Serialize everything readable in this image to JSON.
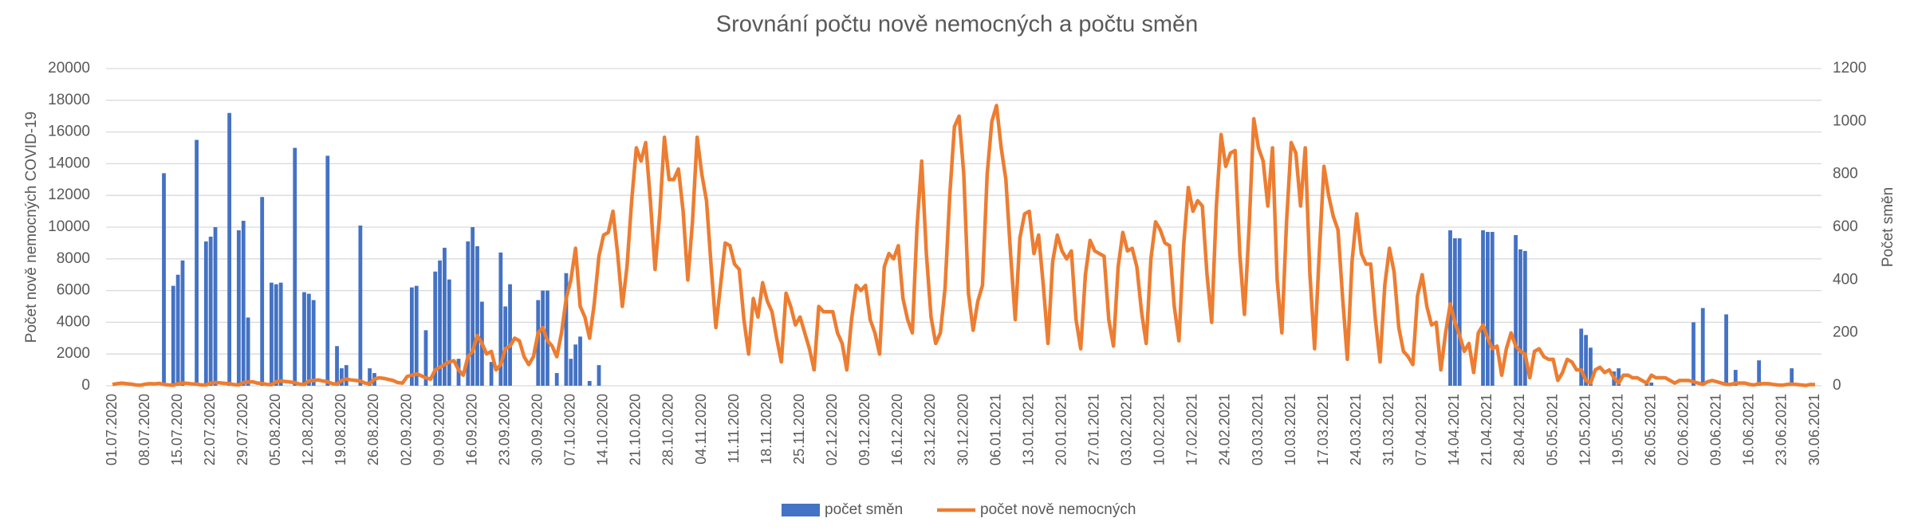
{
  "chart_data": {
    "type": "bar-line",
    "title": "Srovnání počtu nově nemocných a počtu směn",
    "y_label": "Počet nově nemocných COVID-19",
    "y2_label": "Počet směn",
    "ylim": [
      0,
      20000
    ],
    "yticks": [
      0,
      2000,
      4000,
      6000,
      8000,
      10000,
      12000,
      14000,
      16000,
      18000,
      20000
    ],
    "y2lim": [
      0,
      1200
    ],
    "y2ticks": [
      0,
      200,
      400,
      600,
      800,
      1000,
      1200
    ],
    "grid": true,
    "legend": "bottom",
    "categories": [
      "01.07.2020",
      null,
      null,
      null,
      null,
      null,
      null,
      "08.07.2020",
      null,
      null,
      null,
      null,
      null,
      null,
      "15.07.2020",
      null,
      null,
      null,
      null,
      null,
      null,
      "22.07.2020",
      null,
      null,
      null,
      null,
      null,
      null,
      "29.07.2020",
      null,
      null,
      null,
      null,
      null,
      null,
      "05.08.2020",
      null,
      null,
      null,
      null,
      null,
      null,
      "12.08.2020",
      null,
      null,
      null,
      null,
      null,
      null,
      "19.08.2020",
      null,
      null,
      null,
      null,
      null,
      null,
      "26.08.2020",
      null,
      null,
      null,
      null,
      null,
      null,
      "02.09.2020",
      null,
      null,
      null,
      null,
      null,
      null,
      "09.09.2020",
      null,
      null,
      null,
      null,
      null,
      null,
      "16.09.2020",
      null,
      null,
      null,
      null,
      null,
      null,
      "23.09.2020",
      null,
      null,
      null,
      null,
      null,
      null,
      "30.09.2020",
      null,
      null,
      null,
      null,
      null,
      null,
      "07.10.2020",
      null,
      null,
      null,
      null,
      null,
      null,
      "14.10.2020",
      null,
      null,
      null,
      null,
      null,
      null,
      "21.10.2020",
      null,
      null,
      null,
      null,
      null,
      null,
      "28.10.2020",
      null,
      null,
      null,
      null,
      null,
      null,
      "04.11.2020",
      null,
      null,
      null,
      null,
      null,
      null,
      "11.11.2020",
      null,
      null,
      null,
      null,
      null,
      null,
      "18.11.2020",
      null,
      null,
      null,
      null,
      null,
      null,
      "25.11.2020",
      null,
      null,
      null,
      null,
      null,
      null,
      "02.12.2020",
      null,
      null,
      null,
      null,
      null,
      null,
      "09.12.2020",
      null,
      null,
      null,
      null,
      null,
      null,
      "16.12.2020",
      null,
      null,
      null,
      null,
      null,
      null,
      "23.12.2020",
      null,
      null,
      null,
      null,
      null,
      null,
      "30.12.2020",
      null,
      null,
      null,
      null,
      null,
      null,
      "06.01.2021",
      null,
      null,
      null,
      null,
      null,
      null,
      "13.01.2021",
      null,
      null,
      null,
      null,
      null,
      null,
      "20.01.2021",
      null,
      null,
      null,
      null,
      null,
      null,
      "27.01.2021",
      null,
      null,
      null,
      null,
      null,
      null,
      "03.02.2021",
      null,
      null,
      null,
      null,
      null,
      null,
      "10.02.2021",
      null,
      null,
      null,
      null,
      null,
      null,
      "17.02.2021",
      null,
      null,
      null,
      null,
      null,
      null,
      "24.02.2021",
      null,
      null,
      null,
      null,
      null,
      null,
      "03.03.2021",
      null,
      null,
      null,
      null,
      null,
      null,
      "10.03.2021",
      null,
      null,
      null,
      null,
      null,
      null,
      "17.03.2021",
      null,
      null,
      null,
      null,
      null,
      null,
      "24.03.2021",
      null,
      null,
      null,
      null,
      null,
      null,
      "31.03.2021",
      null,
      null,
      null,
      null,
      null,
      null,
      "07.04.2021",
      null,
      null,
      null,
      null,
      null,
      null,
      "14.04.2021",
      null,
      null,
      null,
      null,
      null,
      null,
      "21.04.2021",
      null,
      null,
      null,
      null,
      null,
      null,
      "28.04.2021",
      null,
      null,
      null,
      null,
      null,
      null,
      "05.05.2021",
      null,
      null,
      null,
      null,
      null,
      null,
      "12.05.2021",
      null,
      null,
      null,
      null,
      null,
      null,
      "19.05.2021",
      null,
      null,
      null,
      null,
      null,
      null,
      "26.05.2021",
      null,
      null,
      null,
      null,
      null,
      null,
      "02.06.2021",
      null,
      null,
      null,
      null,
      null,
      null,
      "09.06.2021",
      null,
      null,
      null,
      null,
      null,
      null,
      "16.06.2021",
      null,
      null,
      null,
      null,
      null,
      null,
      "23.06.2021",
      null,
      null,
      null,
      null,
      null,
      null,
      "30.06.2021"
    ],
    "series": [
      {
        "name": "počet směn",
        "type": "bar",
        "color": "#4472c4",
        "values": [
          null,
          null,
          null,
          null,
          null,
          null,
          null,
          null,
          null,
          null,
          null,
          13400,
          null,
          6300,
          7000,
          7900,
          null,
          null,
          15500,
          null,
          9100,
          9400,
          10000,
          null,
          null,
          17200,
          null,
          9800,
          10400,
          4300,
          null,
          null,
          11900,
          null,
          6500,
          6400,
          6500,
          null,
          null,
          15000,
          null,
          5900,
          5800,
          5400,
          null,
          null,
          14500,
          null,
          2500,
          1100,
          1300,
          null,
          null,
          10100,
          null,
          1100,
          800,
          null,
          null,
          null,
          null,
          null,
          null,
          null,
          6200,
          6300,
          null,
          3500,
          null,
          7200,
          7900,
          8700,
          6700,
          null,
          1700,
          null,
          9100,
          10000,
          8800,
          5300,
          null,
          1500,
          null,
          8400,
          5000,
          6400,
          null,
          null,
          null,
          null,
          null,
          5400,
          6000,
          6000,
          null,
          800,
          null,
          7100,
          1700,
          2600,
          3100,
          null,
          300,
          null,
          1300,
          null,
          null,
          null,
          null,
          null,
          null,
          null,
          null,
          null,
          null,
          null,
          null,
          null,
          null,
          null,
          null,
          null,
          null,
          null,
          null,
          null,
          null,
          null,
          null,
          null,
          null,
          null,
          null,
          null,
          null,
          null,
          null,
          null,
          null,
          null,
          null,
          null,
          null,
          null,
          null,
          null,
          null,
          null,
          null,
          null,
          null,
          null,
          null,
          null,
          null,
          null,
          null,
          null,
          null,
          null,
          null,
          null,
          null,
          null,
          null,
          null,
          null,
          null,
          null,
          null,
          null,
          null,
          null,
          null,
          null,
          null,
          null,
          null,
          null,
          null,
          null,
          null,
          null,
          null,
          null,
          null,
          null,
          null,
          null,
          null,
          null,
          null,
          null,
          null,
          null,
          null,
          null,
          null,
          null,
          null,
          null,
          null,
          null,
          null,
          null,
          null,
          null,
          null,
          null,
          null,
          null,
          null,
          null,
          null,
          null,
          null,
          null,
          null,
          null,
          null,
          null,
          null,
          null,
          null,
          null,
          null,
          null,
          null,
          null,
          null,
          null,
          null,
          null,
          null,
          null,
          null,
          null,
          null,
          null,
          null,
          null,
          null,
          null,
          null,
          null,
          null,
          null,
          null,
          null,
          null,
          null,
          null,
          null,
          null,
          null,
          null,
          null,
          null,
          null,
          null,
          null,
          null,
          null,
          null,
          null,
          null,
          null,
          null,
          null,
          null,
          null,
          null,
          null,
          null,
          null,
          null,
          null,
          null,
          null,
          null,
          null,
          null,
          null,
          null,
          null,
          null,
          9800,
          9300,
          9300,
          null,
          null,
          null,
          null,
          9800,
          9700,
          9700,
          null,
          null,
          null,
          null,
          9500,
          8600,
          8500,
          null,
          null,
          null,
          null,
          null,
          null,
          null,
          null,
          null,
          null,
          null,
          3600,
          3200,
          2400,
          null,
          null,
          null,
          null,
          900,
          1100,
          null,
          null,
          null,
          null,
          null,
          300,
          200,
          null,
          null,
          null,
          null,
          null,
          null,
          null,
          null,
          4000,
          null,
          4900,
          null,
          null,
          null,
          null,
          4500,
          null,
          1000,
          null,
          null,
          null,
          null,
          1600,
          null,
          null,
          null,
          null,
          null,
          null,
          1100,
          null,
          null,
          null,
          null,
          null
        ]
      },
      {
        "name": "počet nově nemocných",
        "type": "line",
        "axis": "y2",
        "color": "#ed7d31",
        "values": [
          5,
          8,
          10,
          8,
          6,
          3,
          2,
          6,
          8,
          7,
          9,
          5,
          3,
          2,
          8,
          10,
          9,
          7,
          6,
          3,
          3,
          10,
          12,
          11,
          9,
          8,
          4,
          3,
          12,
          14,
          15,
          10,
          9,
          5,
          4,
          15,
          18,
          16,
          14,
          12,
          6,
          5,
          18,
          20,
          22,
          18,
          15,
          8,
          6,
          20,
          25,
          22,
          20,
          18,
          10,
          8,
          25,
          30,
          28,
          24,
          20,
          12,
          10,
          35,
          40,
          45,
          38,
          30,
          25,
          60,
          70,
          80,
          90,
          95,
          60,
          40,
          110,
          130,
          190,
          160,
          120,
          130,
          60,
          80,
          140,
          150,
          180,
          170,
          110,
          80,
          110,
          200,
          220,
          170,
          150,
          110,
          200,
          330,
          400,
          520,
          300,
          260,
          180,
          310,
          490,
          570,
          580,
          660,
          500,
          300,
          450,
          700,
          900,
          850,
          920,
          700,
          440,
          650,
          940,
          780,
          780,
          820,
          660,
          400,
          620,
          940,
          800,
          700,
          450,
          220,
          380,
          540,
          530,
          460,
          440,
          250,
          120,
          330,
          260,
          390,
          320,
          280,
          180,
          90,
          350,
          300,
          230,
          260,
          200,
          140,
          60,
          300,
          280,
          280,
          280,
          200,
          160,
          60,
          250,
          380,
          360,
          380,
          250,
          200,
          120,
          450,
          500,
          480,
          530,
          330,
          250,
          200,
          600,
          850,
          500,
          260,
          160,
          200,
          370,
          720,
          980,
          1020,
          800,
          350,
          210,
          320,
          380,
          800,
          1000,
          1060,
          900,
          780,
          500,
          250,
          560,
          650,
          660,
          500,
          570,
          380,
          160,
          470,
          570,
          510,
          480,
          510,
          250,
          140,
          420,
          550,
          510,
          500,
          490,
          250,
          150,
          450,
          580,
          510,
          520,
          450,
          280,
          160,
          480,
          620,
          590,
          540,
          530,
          300,
          170,
          530,
          750,
          660,
          700,
          680,
          420,
          240,
          680,
          950,
          830,
          880,
          890,
          500,
          270,
          600,
          1010,
          900,
          850,
          680,
          900,
          400,
          200,
          620,
          920,
          880,
          680,
          900,
          420,
          140,
          500,
          830,
          720,
          640,
          590,
          330,
          100,
          470,
          650,
          500,
          460,
          460,
          250,
          90,
          380,
          520,
          430,
          220,
          130,
          110,
          80,
          340,
          420,
          300,
          230,
          240,
          60,
          200,
          310,
          240,
          190,
          130,
          160,
          50,
          200,
          230,
          180,
          140,
          150,
          40,
          140,
          200,
          150,
          130,
          120,
          30,
          130,
          140,
          110,
          100,
          100,
          20,
          50,
          100,
          90,
          60,
          60,
          20,
          10,
          60,
          70,
          50,
          60,
          30,
          10,
          40,
          40,
          30,
          30,
          20,
          10,
          40,
          30,
          30,
          30,
          20,
          10,
          20,
          20,
          20,
          15,
          10,
          5,
          15,
          20,
          15,
          10,
          5,
          5,
          10,
          10,
          10,
          5,
          3,
          8,
          8,
          8,
          5,
          3,
          2,
          5,
          6,
          5,
          3,
          1,
          5,
          4
        ]
      }
    ]
  }
}
